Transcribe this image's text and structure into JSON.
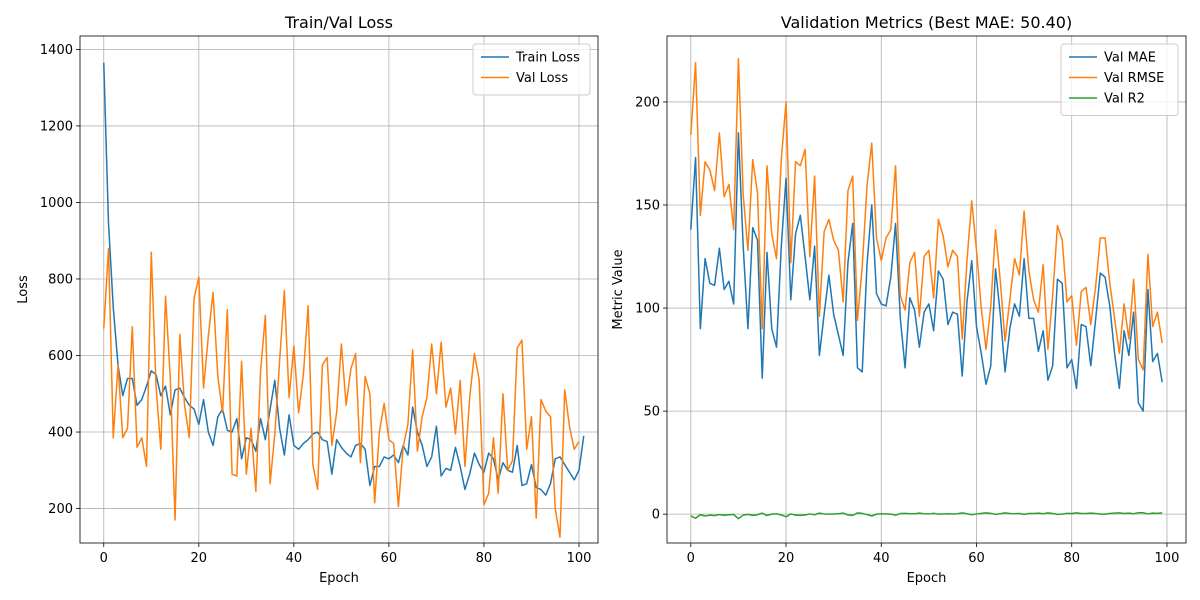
{
  "chart_data": [
    {
      "type": "line",
      "title": "Train/Val Loss",
      "xlabel": "Epoch",
      "ylabel": "Loss",
      "xlim": [
        -5,
        104
      ],
      "ylim": [
        110,
        1435
      ],
      "xticks": [
        0,
        20,
        40,
        60,
        80,
        100
      ],
      "yticks": [
        200,
        400,
        600,
        800,
        1000,
        1200,
        1400
      ],
      "grid": true,
      "legend": "top-right",
      "series": [
        {
          "name": "Train Loss",
          "color": "#1f77b4",
          "values": [
            1365,
            945,
            725,
            575,
            495,
            540,
            540,
            470,
            485,
            520,
            560,
            550,
            495,
            520,
            445,
            510,
            515,
            490,
            470,
            460,
            420,
            485,
            400,
            365,
            440,
            460,
            405,
            400,
            435,
            330,
            385,
            380,
            350,
            435,
            380,
            460,
            535,
            410,
            340,
            445,
            365,
            355,
            370,
            380,
            395,
            400,
            380,
            375,
            290,
            380,
            360,
            345,
            335,
            365,
            370,
            355,
            260,
            310,
            310,
            335,
            330,
            340,
            320,
            365,
            340,
            465,
            400,
            365,
            310,
            335,
            415,
            285,
            305,
            300,
            360,
            310,
            250,
            290,
            345,
            315,
            295,
            345,
            330,
            275,
            320,
            300,
            295,
            365,
            260,
            265,
            315,
            255,
            250,
            235,
            265,
            330,
            335,
            315,
            295,
            275,
            300,
            390
          ],
          "x_start": 0
        },
        {
          "name": "Val Loss",
          "color": "#ff7f0e",
          "values": [
            670,
            880,
            385,
            575,
            385,
            410,
            675,
            360,
            385,
            310,
            870,
            520,
            355,
            755,
            540,
            170,
            655,
            470,
            385,
            750,
            805,
            515,
            650,
            765,
            545,
            450,
            720,
            290,
            285,
            585,
            290,
            410,
            245,
            560,
            705,
            265,
            395,
            585,
            770,
            490,
            625,
            450,
            550,
            730,
            315,
            250,
            575,
            595,
            365,
            450,
            630,
            470,
            565,
            605,
            320,
            545,
            500,
            215,
            400,
            475,
            380,
            370,
            205,
            360,
            420,
            615,
            350,
            440,
            490,
            630,
            500,
            635,
            465,
            515,
            395,
            535,
            310,
            490,
            605,
            535,
            210,
            240,
            385,
            240,
            500,
            300,
            325,
            620,
            640,
            355,
            440,
            175,
            485,
            455,
            440,
            200,
            125,
            510,
            415,
            355,
            375
          ]
        }
      ]
    },
    {
      "type": "line",
      "title": "Validation Metrics (Best MAE: 50.40)",
      "xlabel": "Epoch",
      "ylabel": "Metric Value",
      "xlim": [
        -5,
        104
      ],
      "ylim": [
        -14,
        232
      ],
      "xticks": [
        0,
        20,
        40,
        60,
        80,
        100
      ],
      "yticks": [
        0,
        50,
        100,
        150,
        200
      ],
      "grid": true,
      "legend": "top-right",
      "series": [
        {
          "name": "Val MAE",
          "color": "#1f77b4",
          "values": [
            138,
            173,
            90,
            124,
            112,
            111,
            129,
            109,
            113,
            102,
            185,
            130,
            90,
            139,
            133,
            66,
            127,
            90,
            81,
            130,
            163,
            104,
            136,
            145,
            125,
            104,
            130,
            77,
            97,
            116,
            97,
            87,
            77,
            122,
            141,
            71,
            69,
            121,
            150,
            107,
            102,
            101,
            115,
            141,
            95,
            71,
            105,
            99,
            81,
            98,
            102,
            89,
            118,
            114,
            92,
            98,
            97,
            67,
            103,
            123,
            91,
            78,
            63,
            72,
            119,
            97,
            69,
            90,
            102,
            96,
            124,
            95,
            95,
            79,
            89,
            65,
            72,
            114,
            112,
            71,
            75,
            61,
            92,
            91,
            72,
            94,
            117,
            115,
            101,
            78,
            61,
            89,
            77,
            98,
            54,
            50,
            109,
            74,
            78,
            64
          ]
        },
        {
          "name": "Val RMSE",
          "color": "#ff7f0e",
          "values": [
            184,
            219,
            145,
            171,
            167,
            157,
            185,
            154,
            160,
            138,
            221,
            155,
            128,
            172,
            156,
            90,
            169,
            136,
            124,
            172,
            200,
            122,
            171,
            169,
            177,
            125,
            164,
            96,
            137,
            143,
            133,
            128,
            103,
            157,
            164,
            94,
            120,
            159,
            180,
            134,
            123,
            134,
            138,
            169,
            106,
            99,
            122,
            127,
            96,
            125,
            128,
            105,
            143,
            135,
            120,
            128,
            125,
            85,
            123,
            152,
            128,
            100,
            80,
            101,
            138,
            113,
            84,
            104,
            124,
            116,
            147,
            118,
            104,
            98,
            121,
            80,
            106,
            140,
            133,
            103,
            106,
            82,
            108,
            110,
            92,
            110,
            134,
            134,
            112,
            95,
            78,
            102,
            85,
            114,
            75,
            70,
            126,
            91,
            98,
            83
          ]
        },
        {
          "name": "Val R2",
          "color": "#2ca02c",
          "values": [
            -0.8,
            -2.0,
            -0.3,
            -0.9,
            -0.5,
            -0.7,
            -0.2,
            -0.6,
            -0.3,
            -0.2,
            -2.2,
            -0.5,
            -0.1,
            -0.6,
            -0.3,
            0.5,
            -0.7,
            0.0,
            0.2,
            -0.4,
            -1.3,
            0.1,
            -0.5,
            -0.6,
            -0.4,
            0.1,
            -0.3,
            0.5,
            0.1,
            0.0,
            0.1,
            0.2,
            0.5,
            -0.4,
            -0.6,
            0.6,
            0.4,
            -0.2,
            -0.9,
            0.0,
            0.2,
            0.1,
            0.0,
            -0.5,
            0.3,
            0.4,
            0.2,
            0.2,
            0.5,
            0.2,
            0.1,
            0.4,
            0.0,
            0.1,
            0.2,
            0.1,
            0.2,
            0.6,
            0.2,
            -0.3,
            0.1,
            0.4,
            0.6,
            0.4,
            -0.1,
            0.2,
            0.6,
            0.3,
            0.2,
            0.3,
            -0.1,
            0.3,
            0.3,
            0.5,
            0.2,
            0.6,
            0.3,
            -0.1,
            0.0,
            0.4,
            0.3,
            0.6,
            0.3,
            0.3,
            0.5,
            0.3,
            0.0,
            0.0,
            0.3,
            0.5,
            0.6,
            0.3,
            0.5,
            0.2,
            0.7,
            0.7,
            0.1,
            0.5,
            0.4,
            0.6
          ]
        }
      ]
    }
  ]
}
